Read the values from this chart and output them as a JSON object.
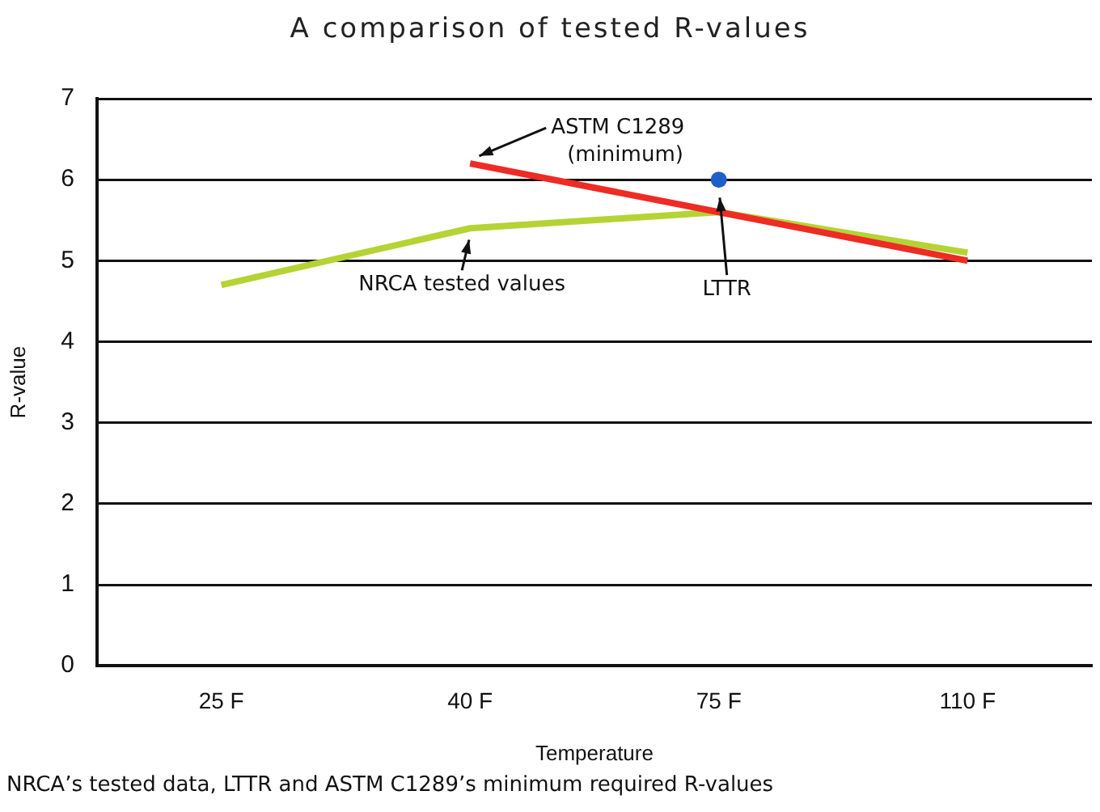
{
  "chart_data": {
    "type": "line",
    "title": "A comparison of tested R-values",
    "xlabel": "Temperature",
    "ylabel": "R-value",
    "categories": [
      "25 F",
      "40 F",
      "75 F",
      "110 F"
    ],
    "series": [
      {
        "name": "ASTM C1289 (minimum)",
        "color": "#ee2b24",
        "values": [
          null,
          6.2,
          5.6,
          5.0
        ]
      },
      {
        "name": "NRCA tested values",
        "color": "#b5d334",
        "values": [
          4.7,
          5.4,
          5.6,
          5.1
        ]
      },
      {
        "name": "LTTR",
        "type": "scatter",
        "color": "#1f5fc8",
        "values": [
          null,
          null,
          6.0,
          null
        ]
      }
    ],
    "ylim": [
      0,
      7
    ],
    "yticks": [
      0,
      1,
      2,
      3,
      4,
      5,
      6,
      7
    ],
    "grid": "y",
    "legend": false,
    "annotations": [
      "NRCA’s tested data, LTTR and ASTM C1289’s minimum required R-values"
    ]
  }
}
